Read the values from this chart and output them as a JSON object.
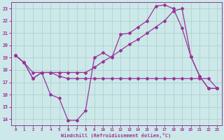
{
  "xlabel": "Windchill (Refroidissement éolien,°C)",
  "bg_color": "#cce8e8",
  "grid_color": "#aacccc",
  "line_color": "#993399",
  "xlim": [
    -0.5,
    23.5
  ],
  "ylim": [
    13.5,
    23.5
  ],
  "xticks": [
    0,
    1,
    2,
    3,
    4,
    5,
    6,
    7,
    8,
    9,
    10,
    11,
    12,
    13,
    14,
    15,
    16,
    17,
    18,
    19,
    20,
    21,
    22,
    23
  ],
  "yticks": [
    14,
    15,
    16,
    17,
    18,
    19,
    20,
    21,
    22,
    23
  ],
  "line1_x": [
    0,
    1,
    2,
    3,
    4,
    5,
    6,
    7,
    8,
    9,
    10,
    11,
    12,
    13,
    14,
    15,
    16,
    17,
    18,
    19,
    20,
    21,
    22,
    23
  ],
  "line1_y": [
    19.2,
    18.6,
    17.3,
    17.8,
    16.0,
    15.7,
    13.9,
    13.9,
    14.7,
    19.0,
    19.4,
    19.0,
    20.9,
    21.0,
    21.5,
    22.0,
    23.2,
    23.3,
    23.0,
    21.4,
    19.1,
    17.5,
    16.5,
    16.5
  ],
  "line2_x": [
    0,
    1,
    2,
    3,
    4,
    5,
    6,
    7,
    8,
    9,
    10,
    11,
    12,
    13,
    14,
    15,
    16,
    17,
    18,
    19,
    20,
    21,
    22,
    23
  ],
  "line2_y": [
    19.2,
    18.6,
    17.8,
    17.8,
    17.8,
    17.8,
    17.8,
    17.8,
    17.8,
    18.2,
    18.7,
    19.1,
    19.6,
    20.1,
    20.5,
    21.0,
    21.5,
    22.0,
    22.8,
    23.0,
    19.1,
    17.5,
    16.5,
    16.5
  ],
  "line3_x": [
    0,
    1,
    2,
    3,
    4,
    5,
    6,
    7,
    8,
    9,
    10,
    11,
    12,
    13,
    14,
    15,
    16,
    17,
    18,
    19,
    20,
    21,
    22,
    23
  ],
  "line3_y": [
    19.2,
    18.6,
    17.3,
    17.8,
    17.8,
    17.5,
    17.3,
    17.3,
    17.3,
    17.3,
    17.3,
    17.3,
    17.3,
    17.3,
    17.3,
    17.3,
    17.3,
    17.3,
    17.3,
    17.3,
    17.3,
    17.3,
    17.3,
    16.5
  ]
}
